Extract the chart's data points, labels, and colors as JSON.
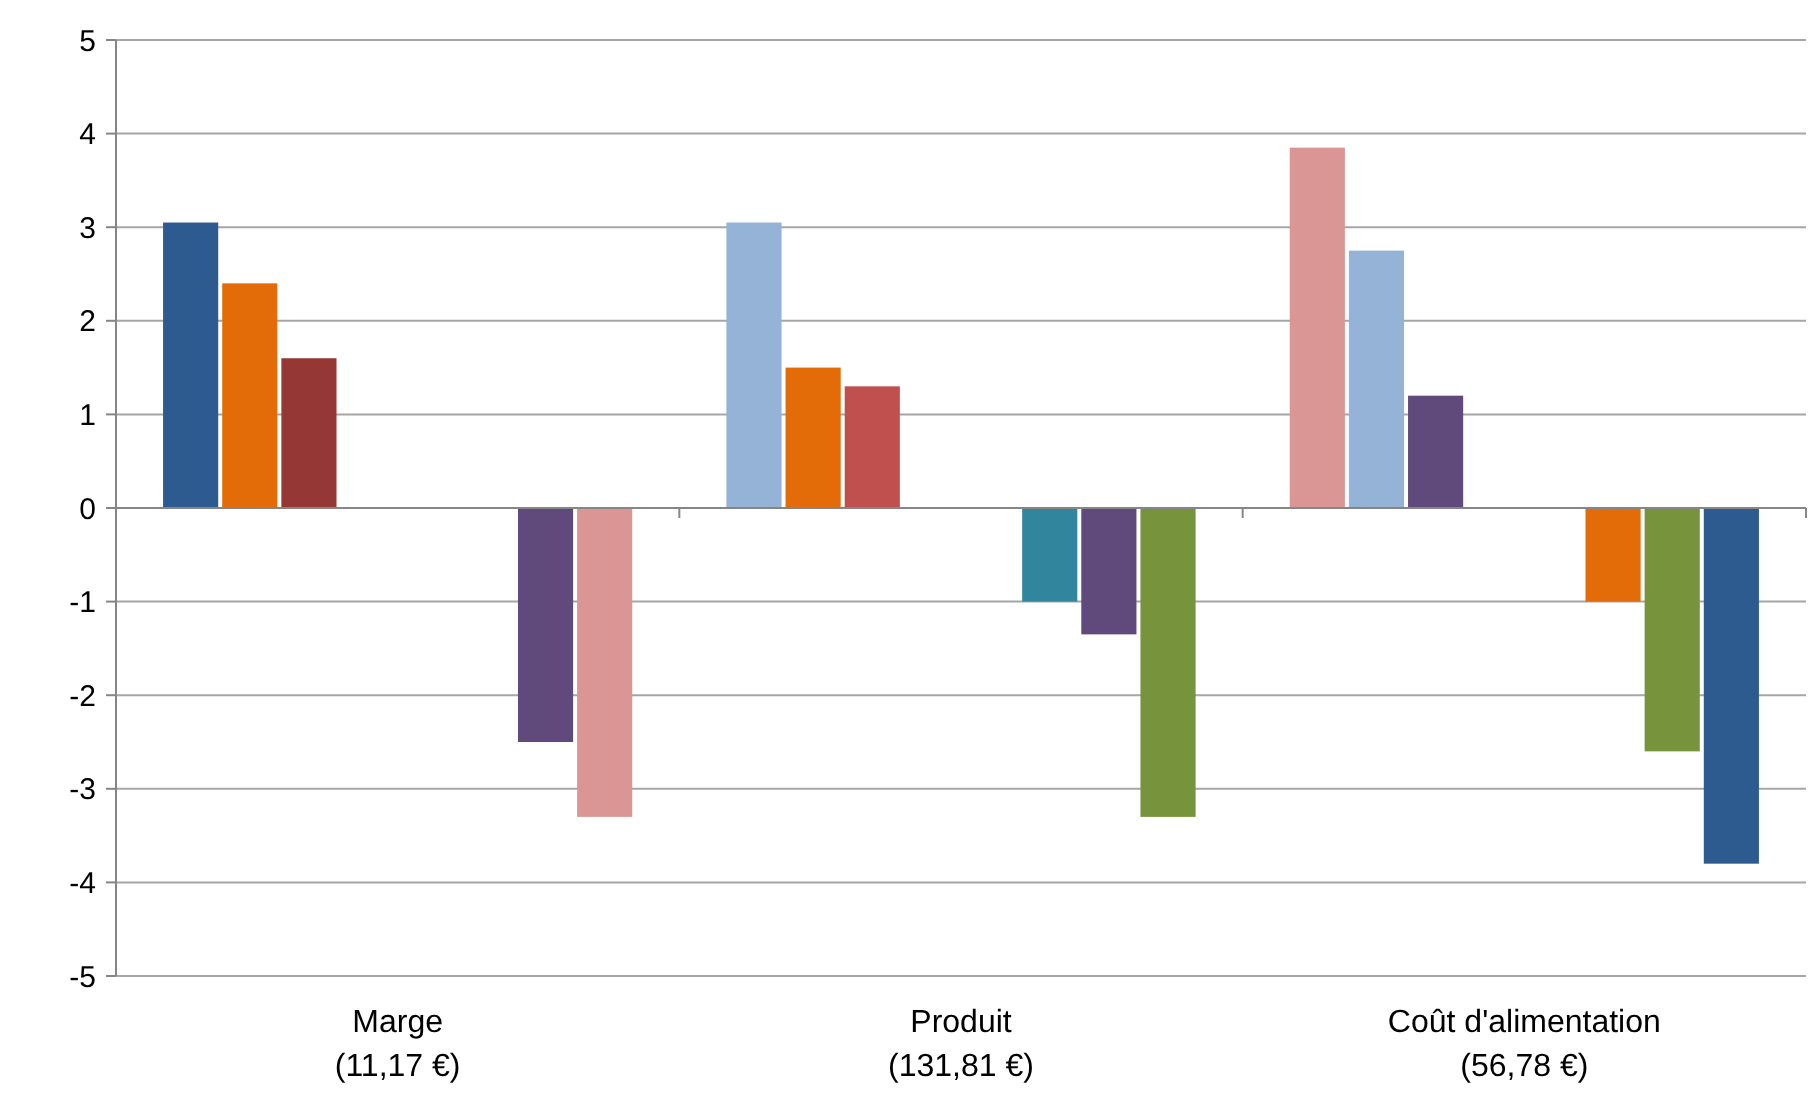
{
  "chart_data": {
    "type": "bar",
    "categories": [
      "Marge\n(11,17 €)",
      "Produit\n(131,81 €)",
      "Coût d'alimentation\n(56,78 €)"
    ],
    "series": [
      {
        "colors": [
          "#2e5b8f",
          "#95b3d7",
          "#d99694"
        ],
        "values": [
          3.05,
          3.05,
          3.85
        ]
      },
      {
        "colors": [
          "#e36c09",
          "#e36c09",
          "#95b3d7"
        ],
        "values": [
          2.4,
          1.5,
          2.75
        ]
      },
      {
        "colors": [
          "#953735",
          "#c0504d",
          "#604a7b"
        ],
        "values": [
          1.6,
          1.3,
          1.2
        ]
      },
      {
        "colors": [
          null,
          null,
          null
        ],
        "values": [
          null,
          null,
          null
        ]
      },
      {
        "colors": [
          null,
          null,
          null
        ],
        "values": [
          null,
          null,
          null
        ]
      },
      {
        "colors": [
          null,
          "#31859c",
          "#e36c09"
        ],
        "values": [
          null,
          -1.0,
          -1.0
        ]
      },
      {
        "colors": [
          "#604a7b",
          "#604a7b",
          "#77933c"
        ],
        "values": [
          -2.5,
          -1.35,
          -2.6
        ]
      },
      {
        "colors": [
          "#d99694",
          "#77933c",
          "#2e5b8f"
        ],
        "values": [
          -3.3,
          -3.3,
          -3.8
        ]
      }
    ],
    "ylim": [
      -5,
      5
    ],
    "yticks": [
      -5,
      -4,
      -3,
      -2,
      -1,
      0,
      1,
      2,
      3,
      4,
      5
    ],
    "grid": "y"
  }
}
